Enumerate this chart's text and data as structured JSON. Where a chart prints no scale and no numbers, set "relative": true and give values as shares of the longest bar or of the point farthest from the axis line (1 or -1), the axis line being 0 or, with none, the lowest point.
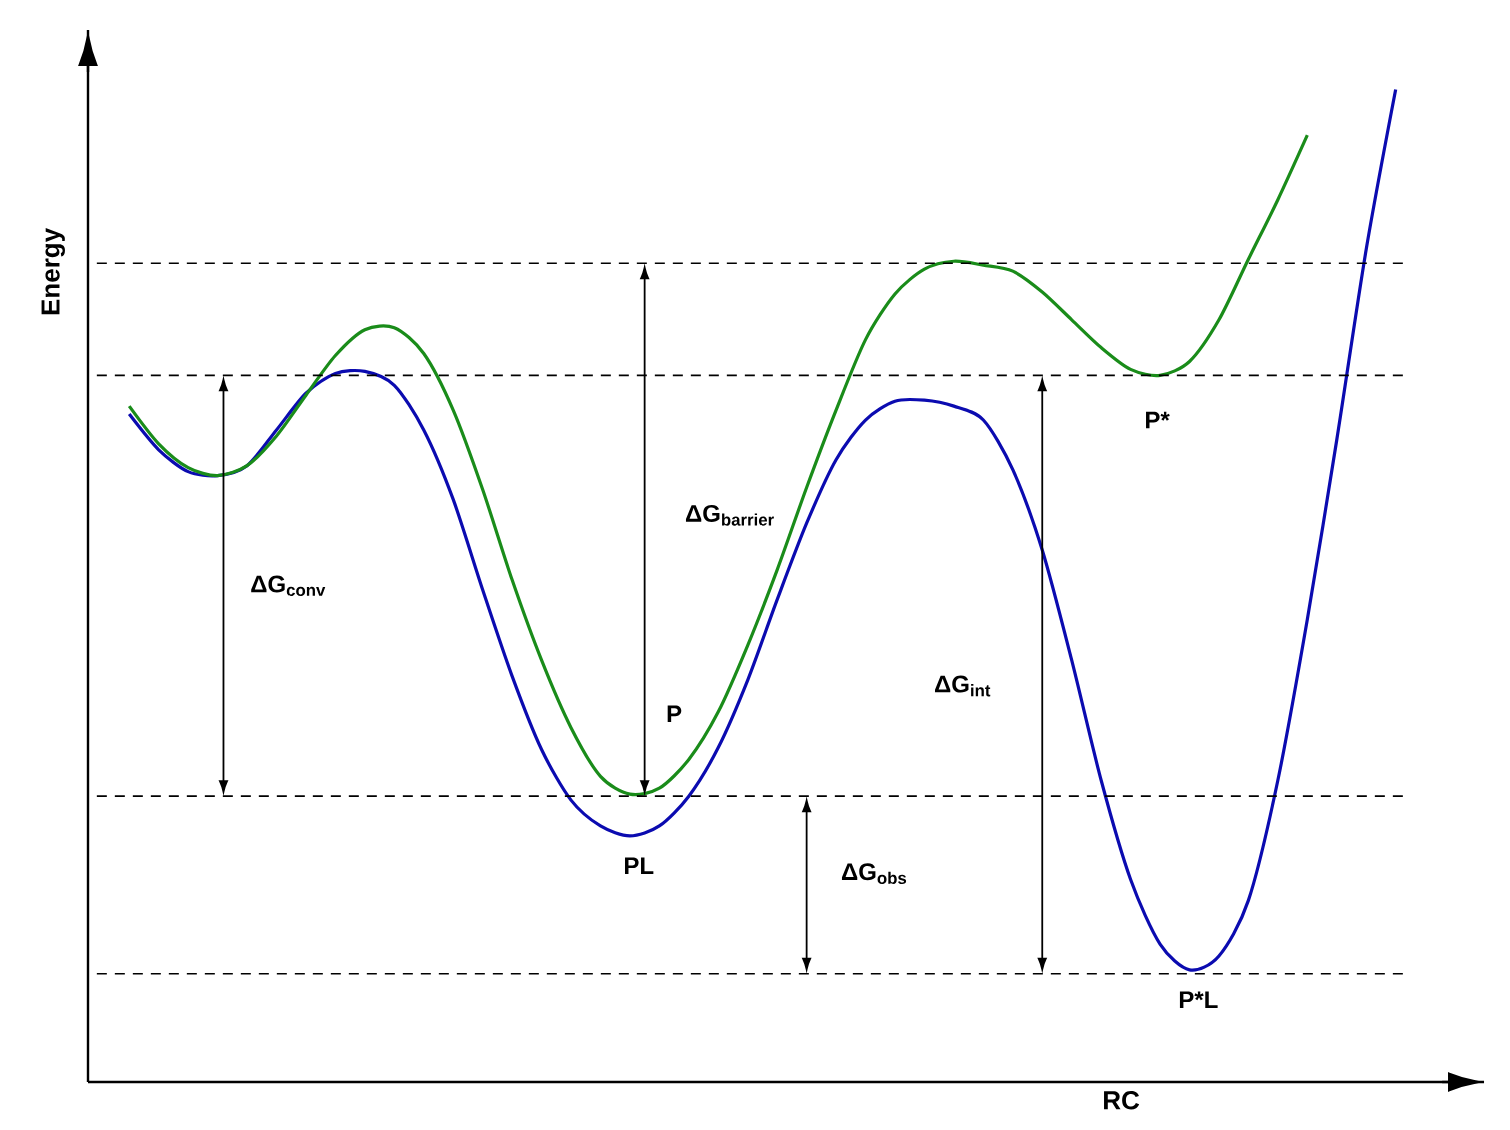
{
  "chart_data": {
    "type": "line",
    "relative": true,
    "xlabel": "RC",
    "ylabel": "Energy",
    "categories": [
      null,
      null,
      null,
      null,
      null,
      null,
      null,
      null,
      null,
      null,
      null,
      null,
      null,
      null,
      null,
      null,
      null,
      null,
      null,
      null,
      null,
      null,
      null,
      null,
      null,
      null,
      null,
      null,
      null,
      null,
      null,
      null,
      null,
      null,
      null,
      null,
      null,
      null,
      null,
      null,
      null,
      null,
      null,
      null
    ],
    "series": [
      {
        "color": "#0b0bb0",
        "values": [
          0.673,
          0.637,
          0.615,
          0.611,
          0.621,
          0.657,
          0.694,
          0.714,
          0.716,
          0.702,
          0.657,
          0.587,
          0.496,
          0.409,
          0.335,
          0.284,
          0.258,
          0.248,
          0.258,
          0.288,
          0.337,
          0.405,
          0.486,
          0.563,
          0.627,
          0.667,
          0.686,
          0.687,
          0.681,
          0.667,
          0.617,
          0.536,
          0.425,
          0.304,
          0.204,
          0.139,
          0.113,
          0.127,
          0.183,
          0.304,
          0.466,
          0.647,
          0.839,
          1.0
        ]
      },
      {
        "color": "#1a8c1a",
        "values": [
          0.681,
          0.643,
          0.619,
          0.611,
          0.621,
          0.651,
          0.692,
          0.732,
          0.758,
          0.76,
          0.734,
          0.677,
          0.597,
          0.506,
          0.425,
          0.357,
          0.308,
          0.29,
          0.296,
          0.325,
          0.373,
          0.44,
          0.516,
          0.599,
          0.677,
          0.748,
          0.794,
          0.819,
          0.827,
          0.823,
          0.817,
          0.796,
          0.768,
          0.74,
          0.718,
          0.712,
          0.726,
          0.768,
          0.829,
          0.889,
          0.954,
          null,
          null,
          null
        ]
      }
    ],
    "ref_lines": [
      {
        "axis": "y",
        "value": 0.825,
        "color": "#000000",
        "line_style": "dashed"
      },
      {
        "axis": "y",
        "value": 0.712,
        "color": "#000000",
        "line_style": "dashed"
      },
      {
        "axis": "y",
        "value": 0.288,
        "color": "#000000",
        "line_style": "dashed"
      },
      {
        "axis": "y",
        "value": 0.109,
        "color": "#000000",
        "line_style": "dashed"
      }
    ],
    "annotations": [
      "ΔG$_{conv}$",
      "ΔG$_{barrier}$",
      "P",
      "PL",
      "ΔG$_{int}$",
      "P*",
      "ΔG$_{obs}$",
      "P*L"
    ]
  }
}
